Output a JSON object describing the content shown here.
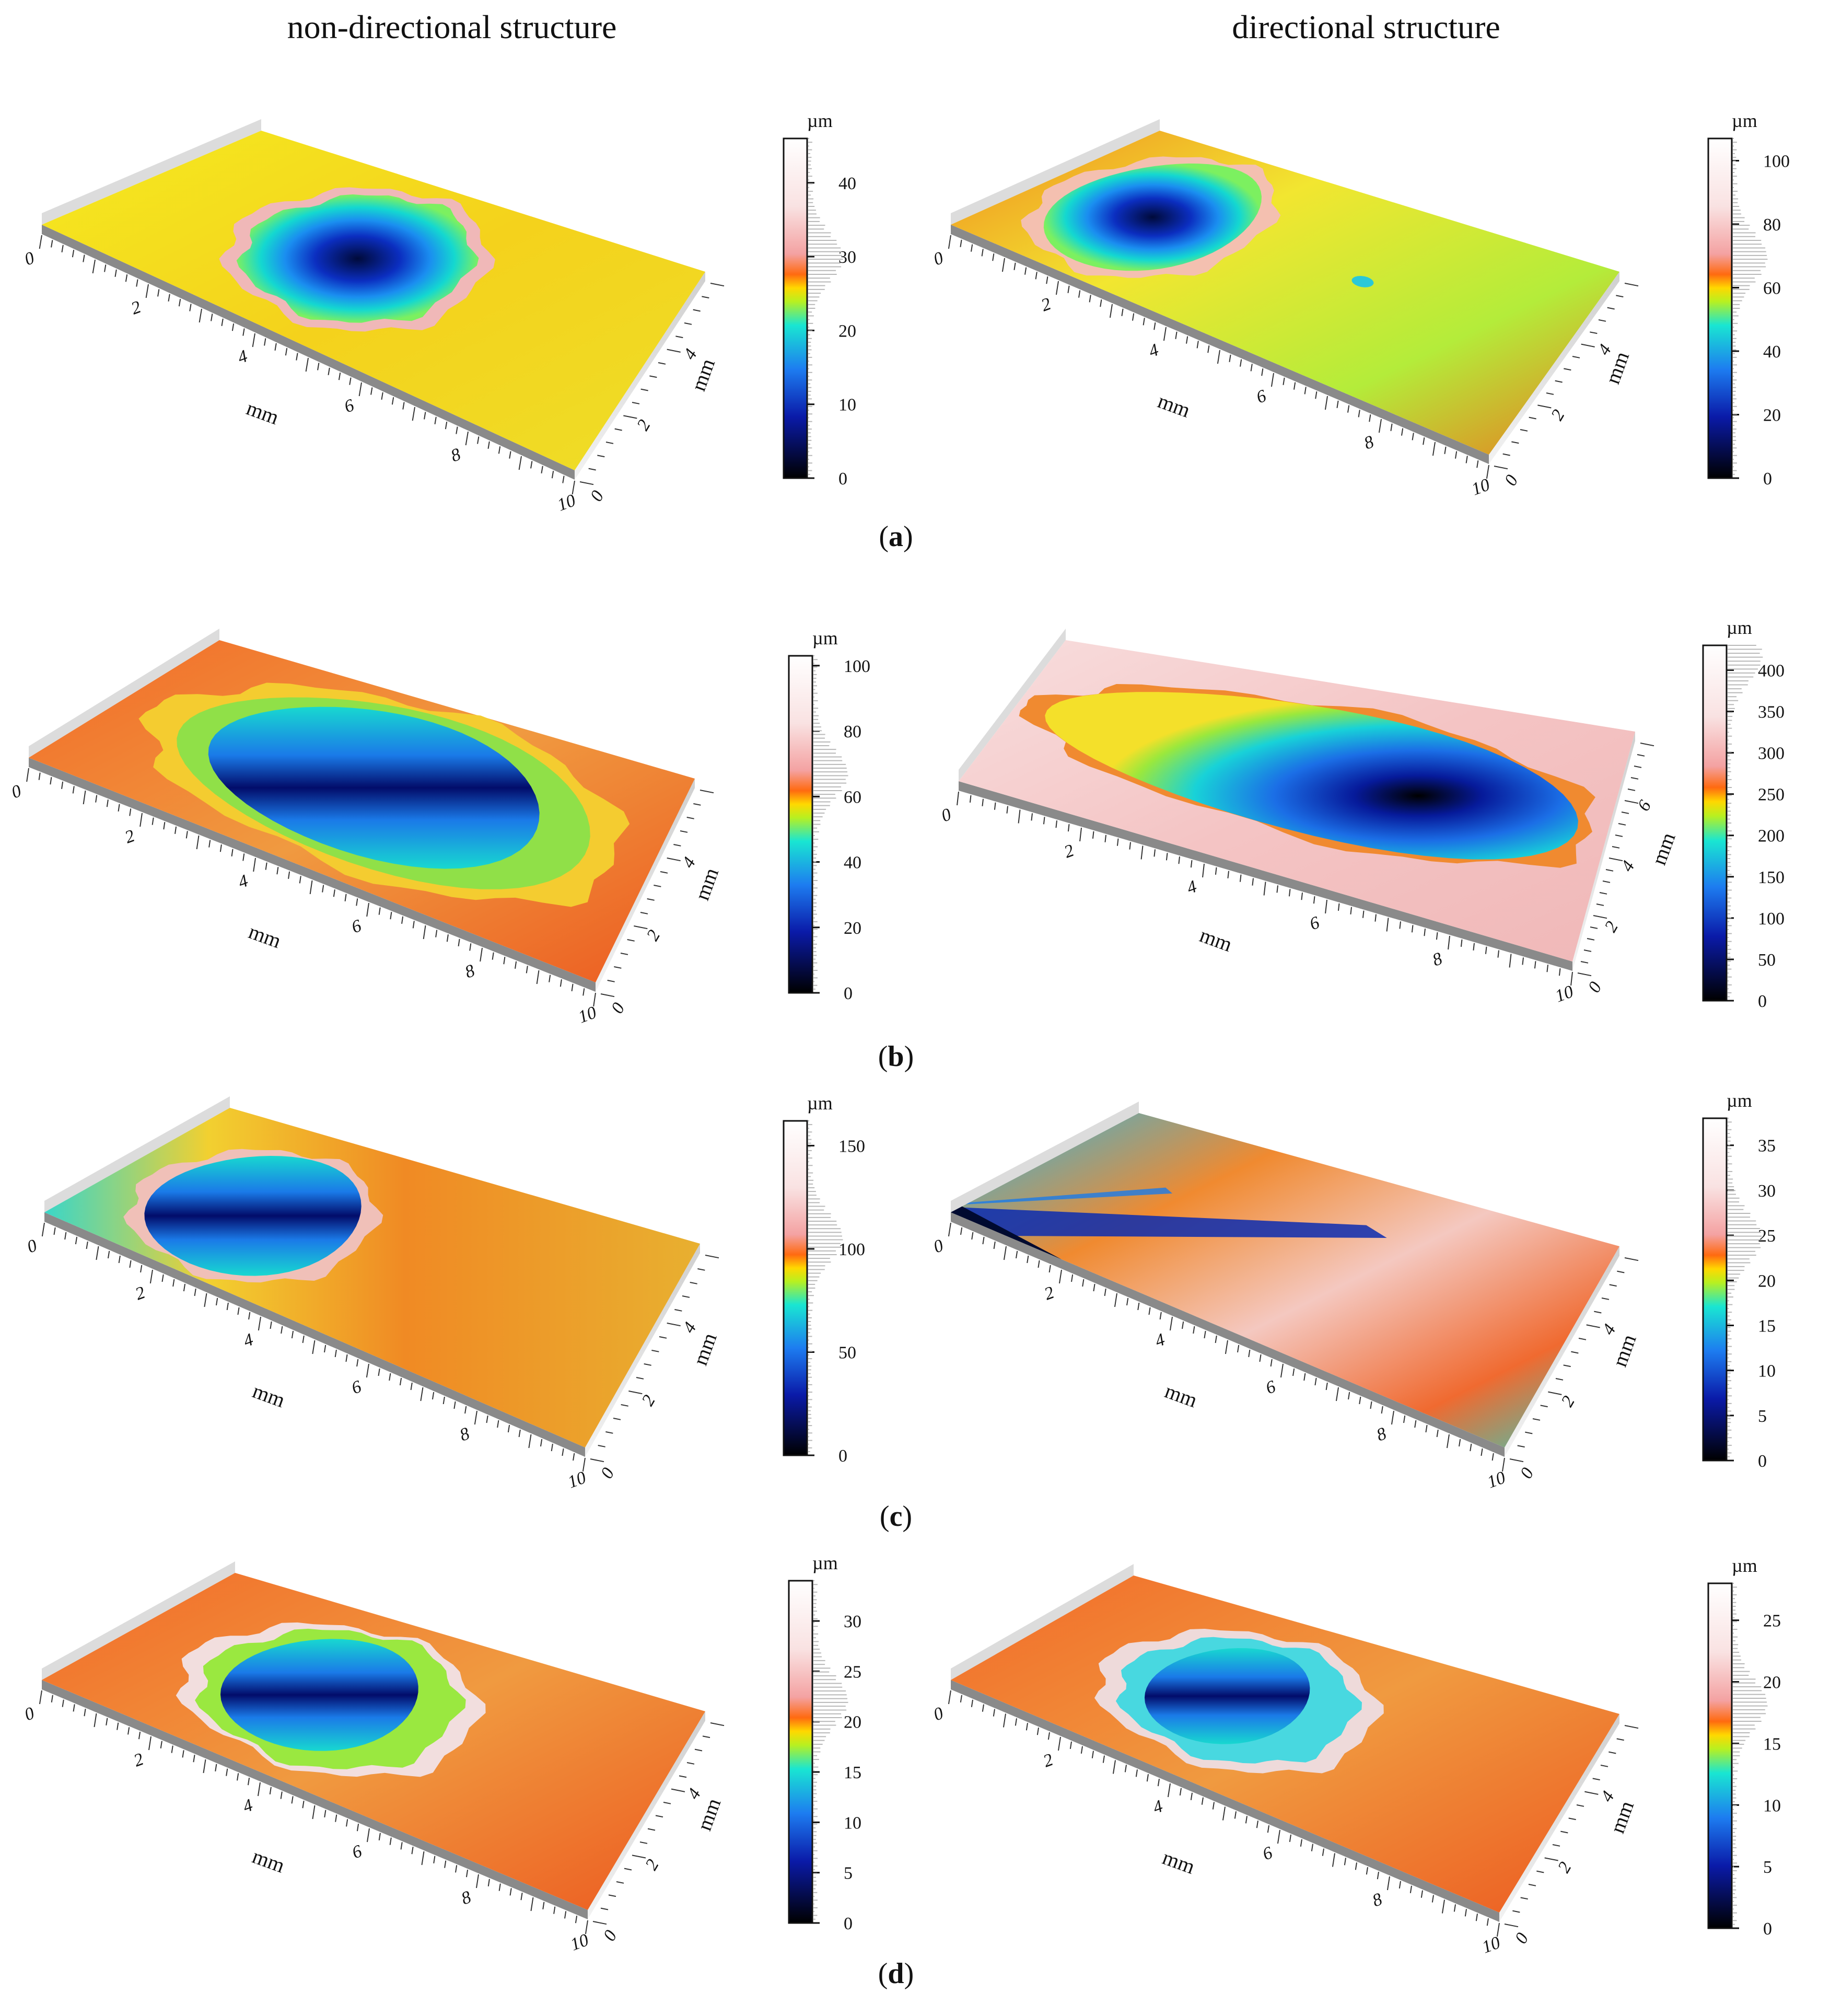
{
  "columns": {
    "left_title": "non-directional structure",
    "right_title": "directional structure"
  },
  "axis_unit": "mm",
  "colorbar_unit": "µm",
  "rows": [
    {
      "label": "a",
      "left": {
        "x_ticks": [
          "0",
          "2",
          "4",
          "6",
          "8",
          "10"
        ],
        "y_ticks": [
          "0",
          "2",
          "4"
        ],
        "colorbar_ticks": [
          "0",
          "10",
          "20",
          "30",
          "40"
        ],
        "colorbar_max": 46
      },
      "right": {
        "x_ticks": [
          "0",
          "2",
          "4",
          "6",
          "8",
          "10"
        ],
        "y_ticks": [
          "0",
          "2",
          "4"
        ],
        "colorbar_ticks": [
          "0",
          "20",
          "40",
          "60",
          "80",
          "100"
        ],
        "colorbar_max": 107
      }
    },
    {
      "label": "b",
      "left": {
        "x_ticks": [
          "0",
          "2",
          "4",
          "6",
          "8",
          "10"
        ],
        "y_ticks": [
          "0",
          "2",
          "4"
        ],
        "colorbar_ticks": [
          "0",
          "20",
          "40",
          "60",
          "80",
          "100"
        ],
        "colorbar_max": 103
      },
      "right": {
        "x_ticks": [
          "0",
          "2",
          "4",
          "6",
          "8",
          "10"
        ],
        "y_ticks": [
          "0",
          "2",
          "4",
          "6"
        ],
        "colorbar_ticks": [
          "0",
          "50",
          "100",
          "150",
          "200",
          "250",
          "300",
          "350",
          "400"
        ],
        "colorbar_max": 430
      }
    },
    {
      "label": "c",
      "left": {
        "x_ticks": [
          "0",
          "2",
          "4",
          "6",
          "8",
          "10"
        ],
        "y_ticks": [
          "0",
          "2",
          "4"
        ],
        "colorbar_ticks": [
          "0",
          "50",
          "100",
          "150"
        ],
        "colorbar_max": 162
      },
      "right": {
        "x_ticks": [
          "0",
          "2",
          "4",
          "6",
          "8",
          "10"
        ],
        "y_ticks": [
          "0",
          "2",
          "4"
        ],
        "colorbar_ticks": [
          "0",
          "5",
          "10",
          "15",
          "20",
          "25",
          "30",
          "35"
        ],
        "colorbar_max": 38
      }
    },
    {
      "label": "d",
      "left": {
        "x_ticks": [
          "0",
          "2",
          "4",
          "6",
          "8",
          "10"
        ],
        "y_ticks": [
          "0",
          "2",
          "4"
        ],
        "colorbar_ticks": [
          "0",
          "5",
          "10",
          "15",
          "20",
          "25",
          "30"
        ],
        "colorbar_max": 34
      },
      "right": {
        "x_ticks": [
          "0",
          "2",
          "4",
          "6",
          "8",
          "10"
        ],
        "y_ticks": [
          "0",
          "2",
          "4"
        ],
        "colorbar_ticks": [
          "0",
          "5",
          "10",
          "15",
          "20",
          "25"
        ],
        "colorbar_max": 28
      }
    }
  ]
}
